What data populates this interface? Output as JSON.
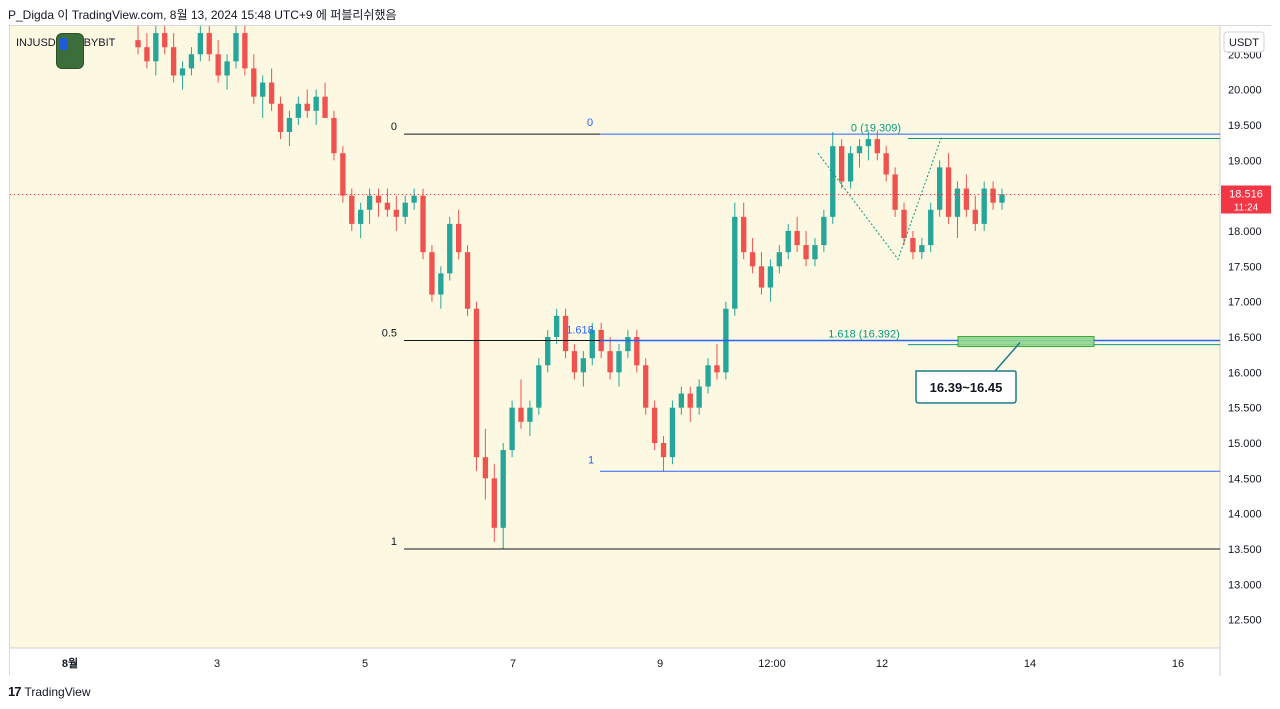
{
  "header": {
    "text": "P_Digda 이 TradingView.com, 8월 13, 2024 15:48 UTC+9 에 퍼블리쉬했음"
  },
  "symbol": {
    "text": "INJUSDT, 시, BYBIT"
  },
  "footer": {
    "brand": "TradingView"
  },
  "colors": {
    "plot_bg": "#fdf8e2",
    "up": "#26a69a",
    "down": "#ef5350",
    "fib_blue": "#2962ff",
    "fib_teal": "#089981",
    "fib_black": "#131722",
    "price_tag": "#f23645",
    "callout": "#1f7a8c",
    "zone_fill": "#8fd88f"
  },
  "chart_data": {
    "type": "candlestick",
    "currency_label": "USDT",
    "y_ticks": [
      "20.500",
      "20.000",
      "19.500",
      "19.000",
      "18.500",
      "18.000",
      "17.500",
      "17.000",
      "16.500",
      "16.000",
      "15.500",
      "15.000",
      "14.500",
      "14.000",
      "13.500",
      "13.000",
      "12.500"
    ],
    "ylim": [
      12.1,
      20.9
    ],
    "x_ticks": [
      "8월",
      "3",
      "5",
      "7",
      "9",
      "12:00",
      "12",
      "14",
      "16"
    ],
    "current_price": {
      "value": "18.516",
      "countdown": "11:24"
    },
    "fib_retracement_1": {
      "labels": {
        "zero": "0",
        "half": "0.5",
        "one": "1"
      },
      "levels": [
        19.37,
        16.45,
        13.5
      ]
    },
    "fib_retracement_2": {
      "labels": {
        "zero": "0",
        "ext": "1.618",
        "one": "1"
      },
      "levels": [
        19.37,
        16.45,
        14.6
      ]
    },
    "fib_extension": {
      "labels": {
        "zero": "0 (19.309)",
        "ext": "1.618 (16.392)"
      },
      "levels": [
        19.309,
        16.392
      ]
    },
    "target_zone": {
      "low": 16.39,
      "high": 16.45,
      "label": "16.39~16.45"
    },
    "candles": [
      {
        "t": 1,
        "o": 20.7,
        "h": 21.0,
        "l": 20.5,
        "c": 20.6
      },
      {
        "t": 2,
        "o": 20.6,
        "h": 20.8,
        "l": 20.3,
        "c": 20.4
      },
      {
        "t": 3,
        "o": 20.4,
        "h": 20.9,
        "l": 20.2,
        "c": 20.8
      },
      {
        "t": 4,
        "o": 20.8,
        "h": 20.9,
        "l": 20.5,
        "c": 20.6
      },
      {
        "t": 5,
        "o": 20.6,
        "h": 20.8,
        "l": 20.1,
        "c": 20.2
      },
      {
        "t": 6,
        "o": 20.2,
        "h": 20.4,
        "l": 20.0,
        "c": 20.3
      },
      {
        "t": 7,
        "o": 20.3,
        "h": 20.6,
        "l": 20.2,
        "c": 20.5
      },
      {
        "t": 8,
        "o": 20.5,
        "h": 20.9,
        "l": 20.4,
        "c": 20.8
      },
      {
        "t": 9,
        "o": 20.8,
        "h": 20.9,
        "l": 20.4,
        "c": 20.5
      },
      {
        "t": 10,
        "o": 20.5,
        "h": 20.7,
        "l": 20.1,
        "c": 20.2
      },
      {
        "t": 11,
        "o": 20.2,
        "h": 20.5,
        "l": 20.0,
        "c": 20.4
      },
      {
        "t": 12,
        "o": 20.4,
        "h": 20.9,
        "l": 20.3,
        "c": 20.8
      },
      {
        "t": 13,
        "o": 20.8,
        "h": 20.9,
        "l": 20.2,
        "c": 20.3
      },
      {
        "t": 14,
        "o": 20.3,
        "h": 20.5,
        "l": 19.8,
        "c": 19.9
      },
      {
        "t": 15,
        "o": 19.9,
        "h": 20.2,
        "l": 19.6,
        "c": 20.1
      },
      {
        "t": 16,
        "o": 20.1,
        "h": 20.3,
        "l": 19.7,
        "c": 19.8
      },
      {
        "t": 17,
        "o": 19.8,
        "h": 19.9,
        "l": 19.3,
        "c": 19.4
      },
      {
        "t": 18,
        "o": 19.4,
        "h": 19.7,
        "l": 19.2,
        "c": 19.6
      },
      {
        "t": 19,
        "o": 19.6,
        "h": 19.9,
        "l": 19.5,
        "c": 19.8
      },
      {
        "t": 20,
        "o": 19.8,
        "h": 20.0,
        "l": 19.6,
        "c": 19.7
      },
      {
        "t": 21,
        "o": 19.7,
        "h": 20.0,
        "l": 19.5,
        "c": 19.9
      },
      {
        "t": 22,
        "o": 19.9,
        "h": 20.1,
        "l": 19.6,
        "c": 19.6
      },
      {
        "t": 23,
        "o": 19.6,
        "h": 19.7,
        "l": 19.0,
        "c": 19.1
      },
      {
        "t": 24,
        "o": 19.1,
        "h": 19.2,
        "l": 18.4,
        "c": 18.5
      },
      {
        "t": 25,
        "o": 18.5,
        "h": 18.6,
        "l": 18.0,
        "c": 18.1
      },
      {
        "t": 26,
        "o": 18.1,
        "h": 18.4,
        "l": 17.9,
        "c": 18.3
      },
      {
        "t": 27,
        "o": 18.3,
        "h": 18.6,
        "l": 18.1,
        "c": 18.5
      },
      {
        "t": 28,
        "o": 18.5,
        "h": 18.6,
        "l": 18.2,
        "c": 18.4
      },
      {
        "t": 29,
        "o": 18.4,
        "h": 18.6,
        "l": 18.2,
        "c": 18.3
      },
      {
        "t": 30,
        "o": 18.3,
        "h": 18.5,
        "l": 18.0,
        "c": 18.2
      },
      {
        "t": 31,
        "o": 18.2,
        "h": 18.5,
        "l": 18.1,
        "c": 18.4
      },
      {
        "t": 32,
        "o": 18.4,
        "h": 18.6,
        "l": 18.3,
        "c": 18.5
      },
      {
        "t": 33,
        "o": 18.5,
        "h": 18.6,
        "l": 17.6,
        "c": 17.7
      },
      {
        "t": 34,
        "o": 17.7,
        "h": 17.8,
        "l": 17.0,
        "c": 17.1
      },
      {
        "t": 35,
        "o": 17.1,
        "h": 17.5,
        "l": 16.9,
        "c": 17.4
      },
      {
        "t": 36,
        "o": 17.4,
        "h": 18.2,
        "l": 17.3,
        "c": 18.1
      },
      {
        "t": 37,
        "o": 18.1,
        "h": 18.3,
        "l": 17.6,
        "c": 17.7
      },
      {
        "t": 38,
        "o": 17.7,
        "h": 17.8,
        "l": 16.8,
        "c": 16.9
      },
      {
        "t": 39,
        "o": 16.9,
        "h": 17.0,
        "l": 14.6,
        "c": 14.8
      },
      {
        "t": 40,
        "o": 14.8,
        "h": 15.2,
        "l": 14.2,
        "c": 14.5
      },
      {
        "t": 41,
        "o": 14.5,
        "h": 14.7,
        "l": 13.6,
        "c": 13.8
      },
      {
        "t": 42,
        "o": 13.8,
        "h": 15.0,
        "l": 13.5,
        "c": 14.9
      },
      {
        "t": 43,
        "o": 14.9,
        "h": 15.6,
        "l": 14.8,
        "c": 15.5
      },
      {
        "t": 44,
        "o": 15.5,
        "h": 15.9,
        "l": 15.2,
        "c": 15.3
      },
      {
        "t": 45,
        "o": 15.3,
        "h": 15.6,
        "l": 15.1,
        "c": 15.5
      },
      {
        "t": 46,
        "o": 15.5,
        "h": 16.2,
        "l": 15.4,
        "c": 16.1
      },
      {
        "t": 47,
        "o": 16.1,
        "h": 16.6,
        "l": 16.0,
        "c": 16.5
      },
      {
        "t": 48,
        "o": 16.5,
        "h": 16.9,
        "l": 16.4,
        "c": 16.8
      },
      {
        "t": 49,
        "o": 16.8,
        "h": 16.9,
        "l": 16.2,
        "c": 16.3
      },
      {
        "t": 50,
        "o": 16.3,
        "h": 16.4,
        "l": 15.9,
        "c": 16.0
      },
      {
        "t": 51,
        "o": 16.0,
        "h": 16.3,
        "l": 15.8,
        "c": 16.2
      },
      {
        "t": 52,
        "o": 16.2,
        "h": 16.7,
        "l": 16.1,
        "c": 16.6
      },
      {
        "t": 53,
        "o": 16.6,
        "h": 16.7,
        "l": 16.2,
        "c": 16.3
      },
      {
        "t": 54,
        "o": 16.3,
        "h": 16.5,
        "l": 15.9,
        "c": 16.0
      },
      {
        "t": 55,
        "o": 16.0,
        "h": 16.4,
        "l": 15.8,
        "c": 16.3
      },
      {
        "t": 56,
        "o": 16.3,
        "h": 16.6,
        "l": 16.2,
        "c": 16.5
      },
      {
        "t": 57,
        "o": 16.5,
        "h": 16.6,
        "l": 16.0,
        "c": 16.1
      },
      {
        "t": 58,
        "o": 16.1,
        "h": 16.2,
        "l": 15.4,
        "c": 15.5
      },
      {
        "t": 59,
        "o": 15.5,
        "h": 15.6,
        "l": 14.9,
        "c": 15.0
      },
      {
        "t": 60,
        "o": 15.0,
        "h": 15.1,
        "l": 14.6,
        "c": 14.8
      },
      {
        "t": 61,
        "o": 14.8,
        "h": 15.6,
        "l": 14.7,
        "c": 15.5
      },
      {
        "t": 62,
        "o": 15.5,
        "h": 15.8,
        "l": 15.4,
        "c": 15.7
      },
      {
        "t": 63,
        "o": 15.7,
        "h": 15.8,
        "l": 15.3,
        "c": 15.5
      },
      {
        "t": 64,
        "o": 15.5,
        "h": 15.9,
        "l": 15.4,
        "c": 15.8
      },
      {
        "t": 65,
        "o": 15.8,
        "h": 16.2,
        "l": 15.7,
        "c": 16.1
      },
      {
        "t": 66,
        "o": 16.1,
        "h": 16.4,
        "l": 15.9,
        "c": 16.0
      },
      {
        "t": 67,
        "o": 16.0,
        "h": 17.0,
        "l": 15.9,
        "c": 16.9
      },
      {
        "t": 68,
        "o": 16.9,
        "h": 18.4,
        "l": 16.8,
        "c": 18.2
      },
      {
        "t": 69,
        "o": 18.2,
        "h": 18.4,
        "l": 17.6,
        "c": 17.7
      },
      {
        "t": 70,
        "o": 17.7,
        "h": 17.9,
        "l": 17.4,
        "c": 17.5
      },
      {
        "t": 71,
        "o": 17.5,
        "h": 17.7,
        "l": 17.1,
        "c": 17.2
      },
      {
        "t": 72,
        "o": 17.2,
        "h": 17.6,
        "l": 17.0,
        "c": 17.5
      },
      {
        "t": 73,
        "o": 17.5,
        "h": 17.8,
        "l": 17.4,
        "c": 17.7
      },
      {
        "t": 74,
        "o": 17.7,
        "h": 18.1,
        "l": 17.6,
        "c": 18.0
      },
      {
        "t": 75,
        "o": 18.0,
        "h": 18.2,
        "l": 17.7,
        "c": 17.8
      },
      {
        "t": 76,
        "o": 17.8,
        "h": 18.0,
        "l": 17.5,
        "c": 17.6
      },
      {
        "t": 77,
        "o": 17.6,
        "h": 17.9,
        "l": 17.5,
        "c": 17.8
      },
      {
        "t": 78,
        "o": 17.8,
        "h": 18.3,
        "l": 17.7,
        "c": 18.2
      },
      {
        "t": 79,
        "o": 18.2,
        "h": 19.4,
        "l": 18.1,
        "c": 19.2
      },
      {
        "t": 80,
        "o": 19.2,
        "h": 19.3,
        "l": 18.6,
        "c": 18.7
      },
      {
        "t": 81,
        "o": 18.7,
        "h": 19.2,
        "l": 18.6,
        "c": 19.1
      },
      {
        "t": 82,
        "o": 19.1,
        "h": 19.3,
        "l": 18.9,
        "c": 19.2
      },
      {
        "t": 83,
        "o": 19.2,
        "h": 19.4,
        "l": 19.0,
        "c": 19.3
      },
      {
        "t": 84,
        "o": 19.3,
        "h": 19.4,
        "l": 19.0,
        "c": 19.1
      },
      {
        "t": 85,
        "o": 19.1,
        "h": 19.2,
        "l": 18.7,
        "c": 18.8
      },
      {
        "t": 86,
        "o": 18.8,
        "h": 18.9,
        "l": 18.2,
        "c": 18.3
      },
      {
        "t": 87,
        "o": 18.3,
        "h": 18.4,
        "l": 17.8,
        "c": 17.9
      },
      {
        "t": 88,
        "o": 17.9,
        "h": 18.0,
        "l": 17.6,
        "c": 17.7
      },
      {
        "t": 89,
        "o": 17.7,
        "h": 17.9,
        "l": 17.6,
        "c": 17.8
      },
      {
        "t": 90,
        "o": 17.8,
        "h": 18.4,
        "l": 17.7,
        "c": 18.3
      },
      {
        "t": 91,
        "o": 18.3,
        "h": 19.0,
        "l": 18.2,
        "c": 18.9
      },
      {
        "t": 92,
        "o": 18.9,
        "h": 19.1,
        "l": 18.1,
        "c": 18.2
      },
      {
        "t": 93,
        "o": 18.2,
        "h": 18.7,
        "l": 17.9,
        "c": 18.6
      },
      {
        "t": 94,
        "o": 18.6,
        "h": 18.8,
        "l": 18.2,
        "c": 18.3
      },
      {
        "t": 95,
        "o": 18.3,
        "h": 18.5,
        "l": 18.0,
        "c": 18.1
      },
      {
        "t": 96,
        "o": 18.1,
        "h": 18.7,
        "l": 18.0,
        "c": 18.6
      },
      {
        "t": 97,
        "o": 18.6,
        "h": 18.7,
        "l": 18.3,
        "c": 18.4
      },
      {
        "t": 98,
        "o": 18.4,
        "h": 18.6,
        "l": 18.3,
        "c": 18.52
      }
    ]
  }
}
